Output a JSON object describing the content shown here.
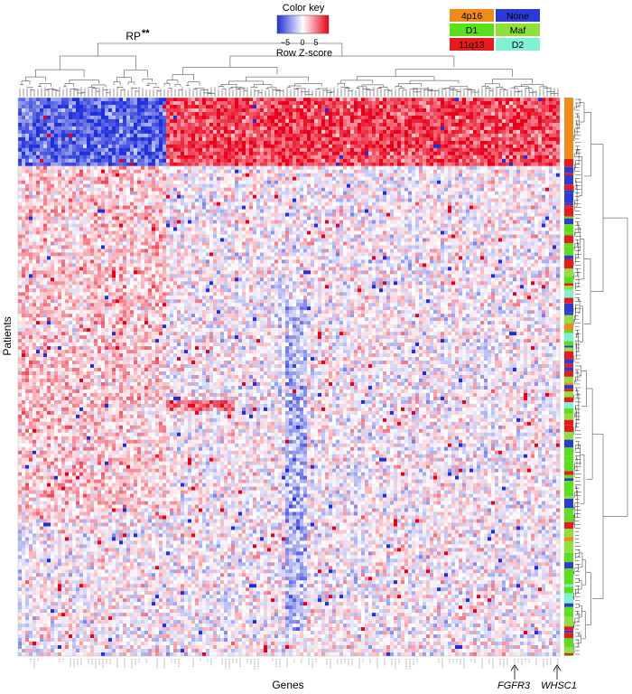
{
  "chart_data": {
    "type": "heatmap",
    "title": "",
    "xlabel": "Genes",
    "ylabel": "Patients",
    "cluster_label": "RP",
    "cluster_significance": "**",
    "color_key": {
      "title": "Color key",
      "label": "Row Z-score",
      "ticks": [
        "−5",
        "0",
        "5"
      ],
      "range": [
        -5,
        5
      ],
      "low_color": "#1f2fd9",
      "mid_color": "#ffffff",
      "high_color": "#e8001a"
    },
    "group_legend": [
      {
        "name": "4p16",
        "color": "#f08b1b"
      },
      {
        "name": "None",
        "color": "#2b3bd6"
      },
      {
        "name": "D1",
        "color": "#58e01a"
      },
      {
        "name": "Maf",
        "color": "#8ee03c"
      },
      {
        "name": "11q13",
        "color": "#ea1a1a"
      },
      {
        "name": "D2",
        "color": "#7ff2d2"
      }
    ],
    "gene_callouts": [
      "FGFR3",
      "WHSC1"
    ],
    "pattern_regions": [
      {
        "rows": [
          0.0,
          0.12
        ],
        "cols": [
          0.0,
          0.27
        ],
        "z": -2.2
      },
      {
        "rows": [
          0.0,
          0.12
        ],
        "cols": [
          0.27,
          1.0
        ],
        "z": 2.2
      },
      {
        "rows": [
          0.0,
          0.1
        ],
        "cols": [
          0.92,
          1.0
        ],
        "z": 3.0
      },
      {
        "rows": [
          0.12,
          0.75
        ],
        "cols": [
          0.0,
          0.27
        ],
        "z": 0.6
      },
      {
        "rows": [
          0.6,
          0.65
        ],
        "cols": [
          0.0,
          0.27
        ],
        "z": -1.4
      },
      {
        "rows": [
          0.36,
          0.95
        ],
        "cols": [
          0.49,
          0.53
        ],
        "z": -1.0
      },
      {
        "rows": [
          0.54,
          0.56
        ],
        "cols": [
          0.27,
          0.4
        ],
        "z": 1.6
      },
      {
        "rows": [
          0.12,
          1.0
        ],
        "cols": [
          0.27,
          1.0
        ],
        "z": 0.0
      }
    ]
  }
}
